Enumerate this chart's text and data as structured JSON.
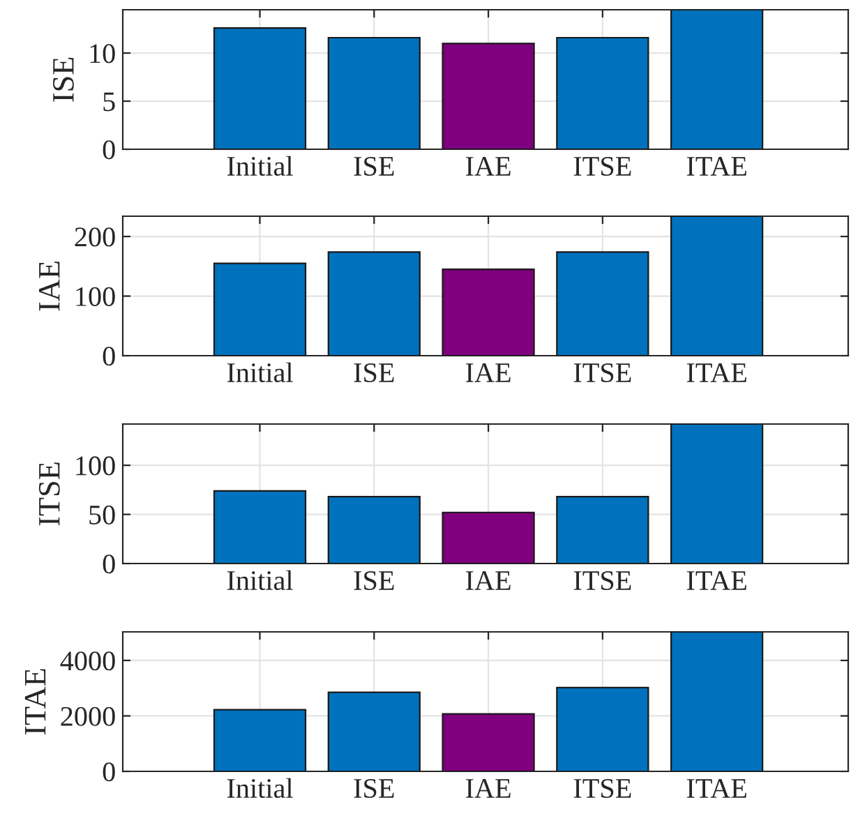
{
  "chart_data": [
    {
      "type": "bar",
      "ylabel": "ISE",
      "categories": [
        "Initial",
        "ISE",
        "IAE",
        "ITSE",
        "ITAE"
      ],
      "values": [
        12.6,
        11.6,
        11.0,
        11.6,
        14.5
      ],
      "colors": [
        "#0072bd",
        "#0072bd",
        "#7e007e",
        "#0072bd",
        "#0072bd"
      ],
      "ylim": [
        0,
        14.5
      ],
      "yticks": [
        0,
        5,
        10
      ],
      "grid": true
    },
    {
      "type": "bar",
      "ylabel": "IAE",
      "categories": [
        "Initial",
        "ISE",
        "IAE",
        "ITSE",
        "ITAE"
      ],
      "values": [
        155,
        174,
        145,
        174,
        234
      ],
      "colors": [
        "#0072bd",
        "#0072bd",
        "#7e007e",
        "#0072bd",
        "#0072bd"
      ],
      "ylim": [
        0,
        234
      ],
      "yticks": [
        0,
        100,
        200
      ],
      "grid": true
    },
    {
      "type": "bar",
      "ylabel": "ITSE",
      "categories": [
        "Initial",
        "ISE",
        "IAE",
        "ITSE",
        "ITAE"
      ],
      "values": [
        74,
        68,
        52,
        68,
        142
      ],
      "colors": [
        "#0072bd",
        "#0072bd",
        "#7e007e",
        "#0072bd",
        "#0072bd"
      ],
      "ylim": [
        0,
        142
      ],
      "yticks": [
        0,
        50,
        100
      ],
      "grid": true
    },
    {
      "type": "bar",
      "ylabel": "ITAE",
      "categories": [
        "Initial",
        "ISE",
        "IAE",
        "ITSE",
        "ITAE"
      ],
      "values": [
        2220,
        2850,
        2070,
        3020,
        5030
      ],
      "colors": [
        "#0072bd",
        "#0072bd",
        "#7e007e",
        "#0072bd",
        "#0072bd"
      ],
      "ylim": [
        0,
        5030
      ],
      "yticks": [
        0,
        2000,
        4000
      ],
      "grid": true
    }
  ]
}
